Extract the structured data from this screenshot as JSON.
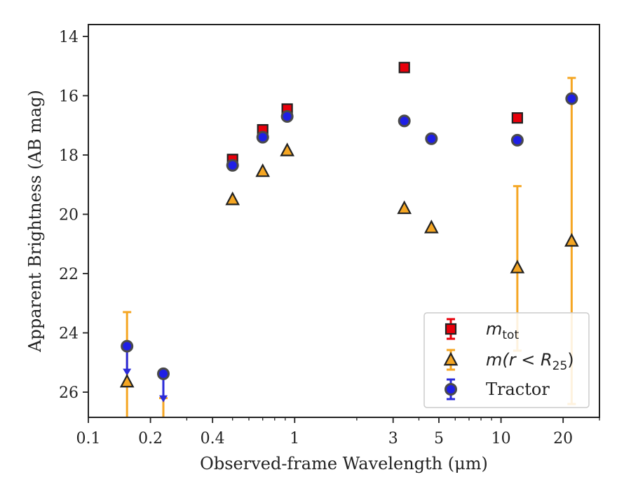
{
  "chart_data": {
    "type": "scatter",
    "xlabel": "Observed-frame Wavelength (μm)",
    "ylabel": "Apparent Brightness (AB mag)",
    "xscale": "log",
    "xlim": [
      0.1,
      30
    ],
    "ylim": [
      26.85,
      13.6
    ],
    "y_inverted": true,
    "x_ticks": [
      {
        "value": 0.1,
        "label": "0.1"
      },
      {
        "value": 0.2,
        "label": "0.2"
      },
      {
        "value": 0.4,
        "label": "0.4"
      },
      {
        "value": 1,
        "label": "1"
      },
      {
        "value": 3,
        "label": "3"
      },
      {
        "value": 5,
        "label": "5"
      },
      {
        "value": 10,
        "label": "10"
      },
      {
        "value": 20,
        "label": "20"
      }
    ],
    "y_ticks": [
      {
        "value": 14,
        "label": "14"
      },
      {
        "value": 16,
        "label": "16"
      },
      {
        "value": 18,
        "label": "18"
      },
      {
        "value": 20,
        "label": "20"
      },
      {
        "value": 22,
        "label": "22"
      },
      {
        "value": 24,
        "label": "24"
      },
      {
        "value": 26,
        "label": "26"
      }
    ],
    "grid": false,
    "legend_position": "lower-right",
    "series": [
      {
        "key": "mtot",
        "marker": "square",
        "color": "#e8000b",
        "error_color": "#e8000b",
        "points": [
          {
            "x": 0.5,
            "y": 18.15
          },
          {
            "x": 0.7,
            "y": 17.15
          },
          {
            "x": 0.92,
            "y": 16.45
          },
          {
            "x": 3.4,
            "y": 15.05
          },
          {
            "x": 12.0,
            "y": 16.75
          }
        ]
      },
      {
        "key": "mr25",
        "marker": "triangle",
        "color": "#f5a623",
        "error_color": "#f5a623",
        "points": [
          {
            "x": 0.154,
            "y": 25.65,
            "err_low": 23.3,
            "err_high": 26.85
          },
          {
            "x": 0.231,
            "y": null,
            "err_low": 26.2,
            "err_high": 26.85
          },
          {
            "x": 0.5,
            "y": 19.5
          },
          {
            "x": 0.7,
            "y": 18.55
          },
          {
            "x": 0.92,
            "y": 17.85
          },
          {
            "x": 3.4,
            "y": 19.8
          },
          {
            "x": 4.6,
            "y": 20.45
          },
          {
            "x": 12.0,
            "y": 21.8,
            "err_low": 19.05,
            "err_high": 24.6
          },
          {
            "x": 22.0,
            "y": 20.9,
            "err_low": 15.4,
            "err_high": 26.4
          }
        ]
      },
      {
        "key": "tractor",
        "name": "Tractor",
        "marker": "circle",
        "color": "#1f1fe6",
        "error_color": "#2b2bd9",
        "points": [
          {
            "x": 0.154,
            "y": 24.45,
            "upper_limit_to": 25.35
          },
          {
            "x": 0.231,
            "y": 25.38,
            "upper_limit_to": 26.25
          },
          {
            "x": 0.5,
            "y": 18.35
          },
          {
            "x": 0.7,
            "y": 17.4
          },
          {
            "x": 0.92,
            "y": 16.7
          },
          {
            "x": 3.4,
            "y": 16.85
          },
          {
            "x": 4.6,
            "y": 17.45
          },
          {
            "x": 12.0,
            "y": 17.5
          },
          {
            "x": 22.0,
            "y": 16.1
          }
        ]
      }
    ],
    "legend": [
      {
        "key": "mtot",
        "italic": "m",
        "sub": "tot"
      },
      {
        "key": "mr25",
        "italic": "m(r < R",
        "sub": "25",
        "suffix": ")"
      },
      {
        "key": "tractor",
        "text": "Tractor"
      }
    ]
  }
}
